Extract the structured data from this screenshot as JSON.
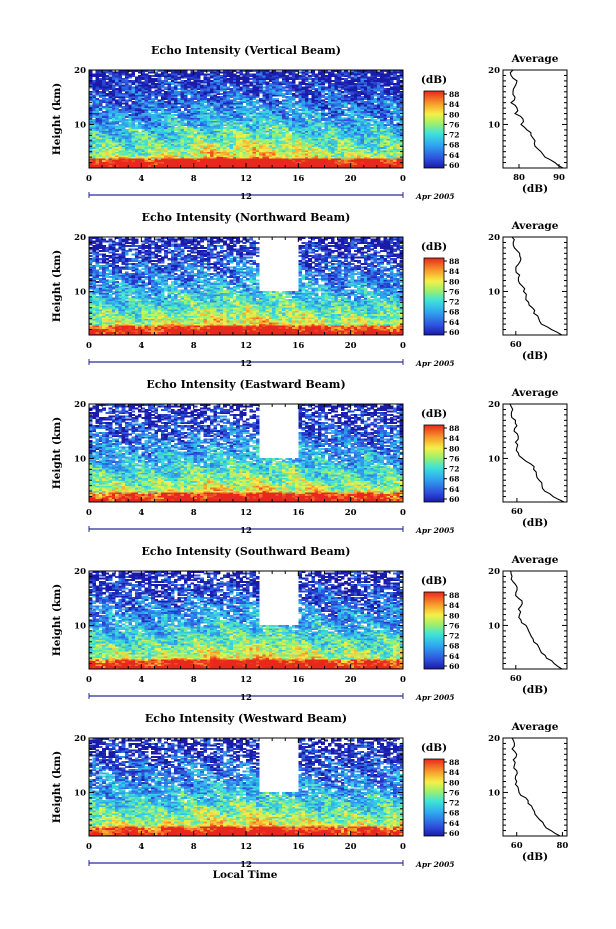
{
  "figure": {
    "xlabel": "Local Time",
    "date_label": "Apr 2005",
    "noon_label": "12",
    "colorbar_unit": "(dB)",
    "average_title": "Average",
    "average_xlabel": "(dB)"
  },
  "chart_data": [
    {
      "type": "heatmap",
      "title": "Echo Intensity (Vertical Beam)",
      "ylabel": "Height (km)",
      "x_ticks": [
        "0",
        "4",
        "8",
        "12",
        "16",
        "20",
        "0"
      ],
      "xlim": [
        0,
        24
      ],
      "y_ticks": [
        "20",
        "10"
      ],
      "ylim": [
        2,
        20
      ],
      "colorbar": {
        "unit": "(dB)",
        "ticks": [
          "88",
          "84",
          "80",
          "76",
          "72",
          "68",
          "64",
          "60"
        ],
        "range": [
          60,
          88
        ]
      },
      "gap_hours": [],
      "gap_height_from_km": 0,
      "sparsity": 0.2,
      "surface_strength": 1.0,
      "average": {
        "title": "Average",
        "xlabel": "(dB)",
        "x_ticks": [
          "80",
          "90"
        ],
        "xlim": [
          76,
          92
        ],
        "y_ticks": [
          "20",
          "10"
        ],
        "heights": [
          2,
          3,
          4,
          5,
          6,
          7,
          8,
          9,
          10,
          11,
          12,
          13,
          14,
          15,
          16,
          17,
          18,
          19,
          20
        ],
        "values": [
          91,
          89,
          86.5,
          85.5,
          84,
          84,
          83,
          82,
          80.5,
          81,
          79,
          79.5,
          78,
          79,
          78.5,
          79,
          79.5,
          78,
          78.5
        ]
      }
    },
    {
      "type": "heatmap",
      "title": "Echo Intensity (Northward Beam)",
      "ylabel": "Height (km)",
      "x_ticks": [
        "0",
        "4",
        "8",
        "12",
        "16",
        "20",
        "0"
      ],
      "xlim": [
        0,
        24
      ],
      "y_ticks": [
        "20",
        "10"
      ],
      "ylim": [
        2,
        20
      ],
      "colorbar": {
        "unit": "(dB)",
        "ticks": [
          "88",
          "84",
          "80",
          "76",
          "72",
          "68",
          "64",
          "60"
        ],
        "range": [
          60,
          88
        ]
      },
      "gap_hours": [
        13,
        16
      ],
      "gap_height_from_km": 10,
      "sparsity": 0.45,
      "surface_strength": 0.75,
      "average": {
        "title": "Average",
        "xlabel": "(dB)",
        "x_ticks": [
          "60"
        ],
        "xlim": [
          55,
          80
        ],
        "y_ticks": [
          "20",
          "10"
        ],
        "heights": [
          2,
          3,
          4,
          5,
          6,
          7,
          8,
          9,
          10,
          11,
          12,
          13,
          14,
          15,
          16,
          17,
          18,
          19,
          20
        ],
        "values": [
          78,
          74,
          70,
          69,
          67,
          66.5,
          65,
          64,
          63,
          62.5,
          61,
          61.5,
          60,
          61,
          62,
          61.5,
          59.5,
          59,
          58.5
        ]
      }
    },
    {
      "type": "heatmap",
      "title": "Echo Intensity (Eastward Beam)",
      "ylabel": "Height (km)",
      "x_ticks": [
        "0",
        "4",
        "8",
        "12",
        "16",
        "20",
        "0"
      ],
      "xlim": [
        0,
        24
      ],
      "y_ticks": [
        "20",
        "10"
      ],
      "ylim": [
        2,
        20
      ],
      "colorbar": {
        "unit": "(dB)",
        "ticks": [
          "88",
          "84",
          "80",
          "76",
          "72",
          "68",
          "64",
          "60"
        ],
        "range": [
          60,
          88
        ]
      },
      "gap_hours": [
        13,
        16
      ],
      "gap_height_from_km": 10,
      "sparsity": 0.48,
      "surface_strength": 0.7,
      "average": {
        "title": "Average",
        "xlabel": "(dB)",
        "x_ticks": [
          "60"
        ],
        "xlim": [
          55,
          78
        ],
        "y_ticks": [
          "20",
          "10"
        ],
        "heights": [
          2,
          3,
          4,
          5,
          6,
          7,
          8,
          9,
          10,
          11,
          12,
          13,
          14,
          15,
          16,
          17,
          18,
          19,
          20
        ],
        "values": [
          77,
          73,
          70,
          69,
          68,
          67,
          66,
          65,
          62,
          60.5,
          60,
          59.5,
          60.5,
          59,
          60,
          59.5,
          58,
          58.5,
          57.5
        ]
      }
    },
    {
      "type": "heatmap",
      "title": "Echo Intensity (Southward Beam)",
      "ylabel": "Height (km)",
      "x_ticks": [
        "0",
        "4",
        "8",
        "12",
        "16",
        "20",
        "0"
      ],
      "xlim": [
        0,
        24
      ],
      "y_ticks": [
        "20",
        "10"
      ],
      "ylim": [
        2,
        20
      ],
      "colorbar": {
        "unit": "(dB)",
        "ticks": [
          "88",
          "84",
          "80",
          "76",
          "72",
          "68",
          "64",
          "60"
        ],
        "range": [
          60,
          88
        ]
      },
      "gap_hours": [
        13,
        16
      ],
      "gap_height_from_km": 10,
      "sparsity": 0.42,
      "surface_strength": 0.75,
      "average": {
        "title": "Average",
        "xlabel": "(dB)",
        "x_ticks": [
          "60"
        ],
        "xlim": [
          55,
          80
        ],
        "y_ticks": [
          "20",
          "10"
        ],
        "heights": [
          2,
          3,
          4,
          5,
          6,
          7,
          8,
          9,
          10,
          11,
          12,
          13,
          14,
          15,
          16,
          17,
          18,
          19,
          20
        ],
        "values": [
          78,
          75,
          72,
          70,
          69,
          67,
          66,
          65,
          64,
          62,
          61.5,
          61,
          62.5,
          61,
          60,
          60.5,
          59,
          58.5,
          58
        ]
      }
    },
    {
      "type": "heatmap",
      "title": "Echo Intensity (Westward Beam)",
      "ylabel": "Height (km)",
      "x_ticks": [
        "0",
        "4",
        "8",
        "12",
        "16",
        "20",
        "0"
      ],
      "xlim": [
        0,
        24
      ],
      "y_ticks": [
        "20",
        "10"
      ],
      "ylim": [
        2,
        20
      ],
      "colorbar": {
        "unit": "(dB)",
        "ticks": [
          "88",
          "84",
          "80",
          "76",
          "72",
          "68",
          "64",
          "60"
        ],
        "range": [
          60,
          88
        ]
      },
      "gap_hours": [
        13,
        16
      ],
      "gap_height_from_km": 10,
      "sparsity": 0.47,
      "surface_strength": 0.7,
      "average": {
        "title": "Average",
        "xlabel": "(dB)",
        "x_ticks": [
          "60",
          "80"
        ],
        "xlim": [
          54,
          82
        ],
        "y_ticks": [
          "20",
          "10"
        ],
        "heights": [
          2,
          3,
          4,
          5,
          6,
          7,
          8,
          9,
          10,
          11,
          12,
          13,
          14,
          15,
          16,
          17,
          18,
          19,
          20
        ],
        "values": [
          79,
          75,
          72,
          70,
          68,
          67,
          65,
          64,
          61,
          60.5,
          60,
          59.5,
          60,
          59,
          58.5,
          60,
          58,
          59,
          58
        ]
      }
    }
  ]
}
